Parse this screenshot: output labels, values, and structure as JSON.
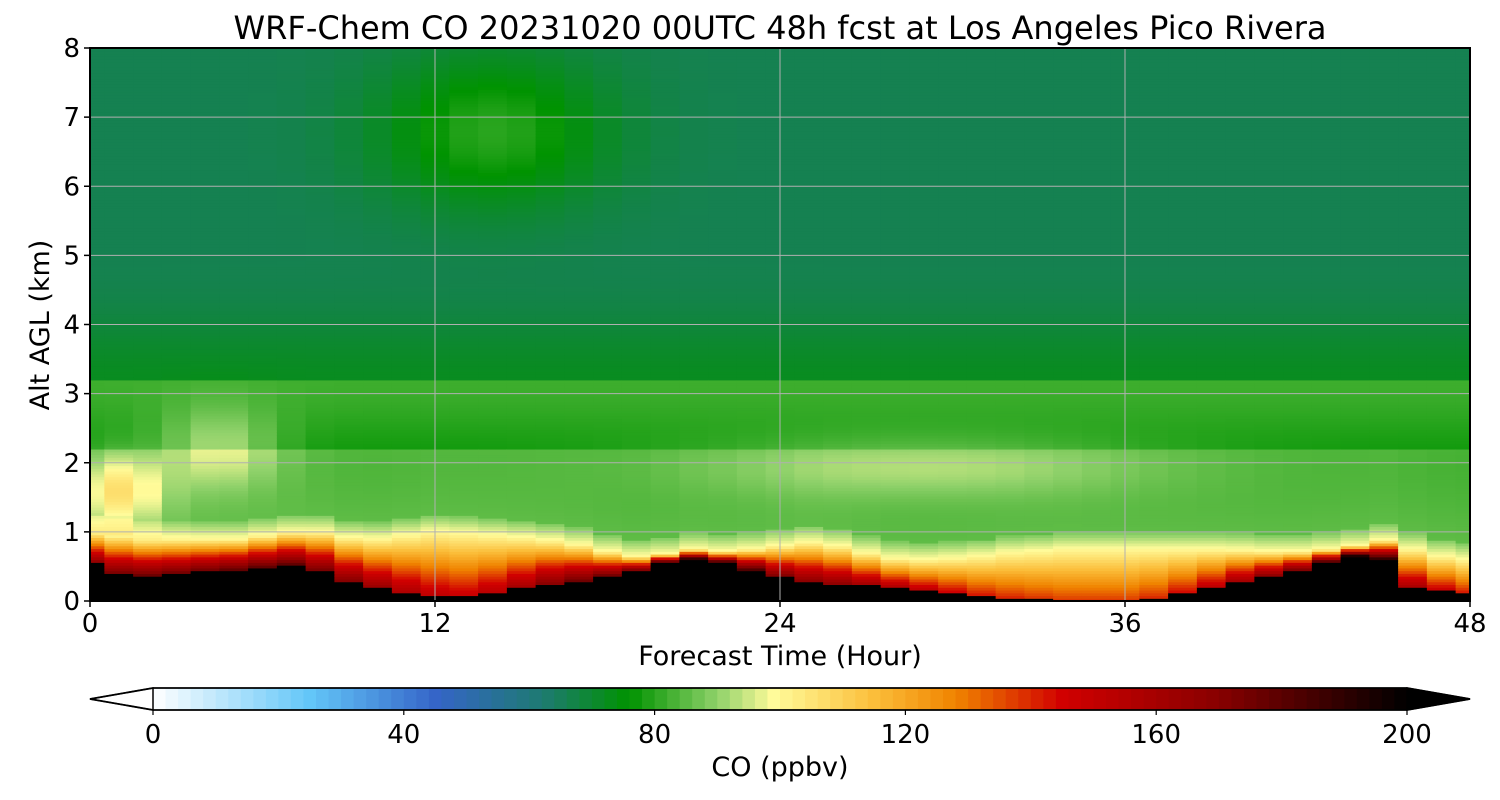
{
  "chart_data": {
    "type": "heatmap",
    "title": "WRF-Chem CO  20231020 00UTC 48h fcst at Los Angeles Pico Rivera",
    "xlabel": "Forecast Time (Hour)",
    "ylabel": "Alt AGL (km)",
    "xlim": [
      0,
      48
    ],
    "ylim": [
      0,
      8
    ],
    "x_ticks": [
      "0",
      "12",
      "24",
      "36",
      "48"
    ],
    "y_ticks": [
      "0",
      "1",
      "2",
      "3",
      "4",
      "5",
      "6",
      "7",
      "8"
    ],
    "grid": true,
    "colorbar": {
      "label": "CO  (ppbv)",
      "orientation": "horizontal",
      "placement": "bottom",
      "ticks": [
        "0",
        "40",
        "80",
        "120",
        "160",
        "200"
      ],
      "range": [
        0,
        200
      ],
      "extend": "both",
      "levels": 100,
      "stops": [
        {
          "value": 0,
          "color": "#ffffff"
        },
        {
          "value": 25,
          "color": "#63c6f8"
        },
        {
          "value": 45,
          "color": "#3565c8"
        },
        {
          "value": 62,
          "color": "#1e7a72"
        },
        {
          "value": 76,
          "color": "#009300"
        },
        {
          "value": 90,
          "color": "#8fd16a"
        },
        {
          "value": 99,
          "color": "#fffb9a"
        },
        {
          "value": 115,
          "color": "#fbbe3a"
        },
        {
          "value": 128,
          "color": "#f08400"
        },
        {
          "value": 145,
          "color": "#d10000"
        },
        {
          "value": 170,
          "color": "#880000"
        },
        {
          "value": 200,
          "color": "#000000"
        }
      ]
    },
    "profiles": {
      "hours": [
        0,
        1,
        2,
        3,
        4,
        5,
        6,
        7,
        8,
        9,
        10,
        11,
        12,
        13,
        14,
        15,
        16,
        17,
        18,
        19,
        20,
        21,
        22,
        23,
        24,
        25,
        26,
        27,
        28,
        29,
        30,
        31,
        32,
        33,
        34,
        35,
        36,
        37,
        38,
        39,
        40,
        41,
        42,
        43,
        44,
        45,
        46,
        47,
        48
      ],
      "black_top_km": [
        0.55,
        0.4,
        0.35,
        0.38,
        0.42,
        0.45,
        0.48,
        0.5,
        0.42,
        0.3,
        0.2,
        0.12,
        0.08,
        0.06,
        0.1,
        0.18,
        0.25,
        0.3,
        0.35,
        0.42,
        0.55,
        0.6,
        0.55,
        0.45,
        0.35,
        0.28,
        0.25,
        0.22,
        0.18,
        0.14,
        0.1,
        0.06,
        0.03,
        0.02,
        0.01,
        0.01,
        0.01,
        0.05,
        0.12,
        0.2,
        0.28,
        0.35,
        0.42,
        0.55,
        0.65,
        0.6,
        0.2,
        0.15,
        0.1
      ],
      "boundary_top_km": [
        1.0,
        0.95,
        0.9,
        0.9,
        0.9,
        0.9,
        0.95,
        1.0,
        1.0,
        0.92,
        0.9,
        0.95,
        1.0,
        0.98,
        0.95,
        0.92,
        0.88,
        0.82,
        0.72,
        0.65,
        0.68,
        0.75,
        0.72,
        0.75,
        0.8,
        0.85,
        0.8,
        0.7,
        0.62,
        0.6,
        0.62,
        0.65,
        0.7,
        0.72,
        0.75,
        0.75,
        0.75,
        0.75,
        0.75,
        0.75,
        0.74,
        0.72,
        0.72,
        0.75,
        0.8,
        0.88,
        0.75,
        0.65,
        0.6
      ],
      "near_surface_ppbv": [
        170,
        175,
        180,
        180,
        180,
        180,
        182,
        185,
        178,
        170,
        165,
        158,
        152,
        150,
        155,
        162,
        170,
        175,
        180,
        185,
        195,
        200,
        195,
        185,
        175,
        170,
        168,
        165,
        160,
        155,
        150,
        145,
        142,
        140,
        138,
        138,
        138,
        140,
        145,
        152,
        162,
        172,
        182,
        192,
        200,
        195,
        160,
        150,
        145
      ]
    }
  }
}
